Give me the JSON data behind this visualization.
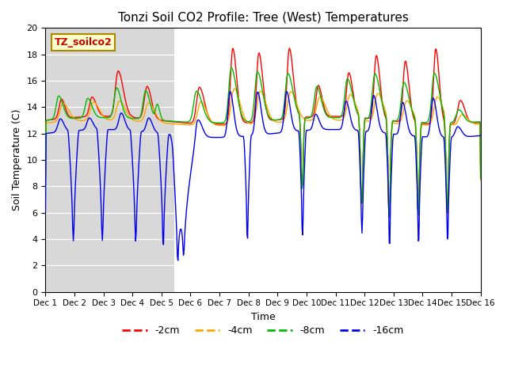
{
  "title": "Tonzi Soil CO2 Profile: Tree (West) Temperatures",
  "xlabel": "Time",
  "ylabel": "Soil Temperature (C)",
  "legend_label": "TZ_soilco2",
  "ylim": [
    0,
    20
  ],
  "bg_color_left": "#e0e0e0",
  "bg_color_right": "#ffffff",
  "series": {
    "-2cm": {
      "color": "#ff0000"
    },
    "-4cm": {
      "color": "#ffa500"
    },
    "-8cm": {
      "color": "#00bb00"
    },
    "-16cm": {
      "color": "#0000ee"
    }
  },
  "xtick_labels": [
    "Dec 1",
    "Dec 2",
    "Dec 3",
    "Dec 4",
    "Dec 5",
    "Dec 6",
    "Dec 7",
    "Dec 8",
    "Dec 9",
    "Dec 10",
    "Dec 11",
    "Dec 12",
    "Dec 13",
    "Dec 14",
    "Dec 15",
    "Dec 16"
  ],
  "ytick_vals": [
    0,
    2,
    4,
    6,
    8,
    10,
    12,
    14,
    16,
    18,
    20
  ]
}
